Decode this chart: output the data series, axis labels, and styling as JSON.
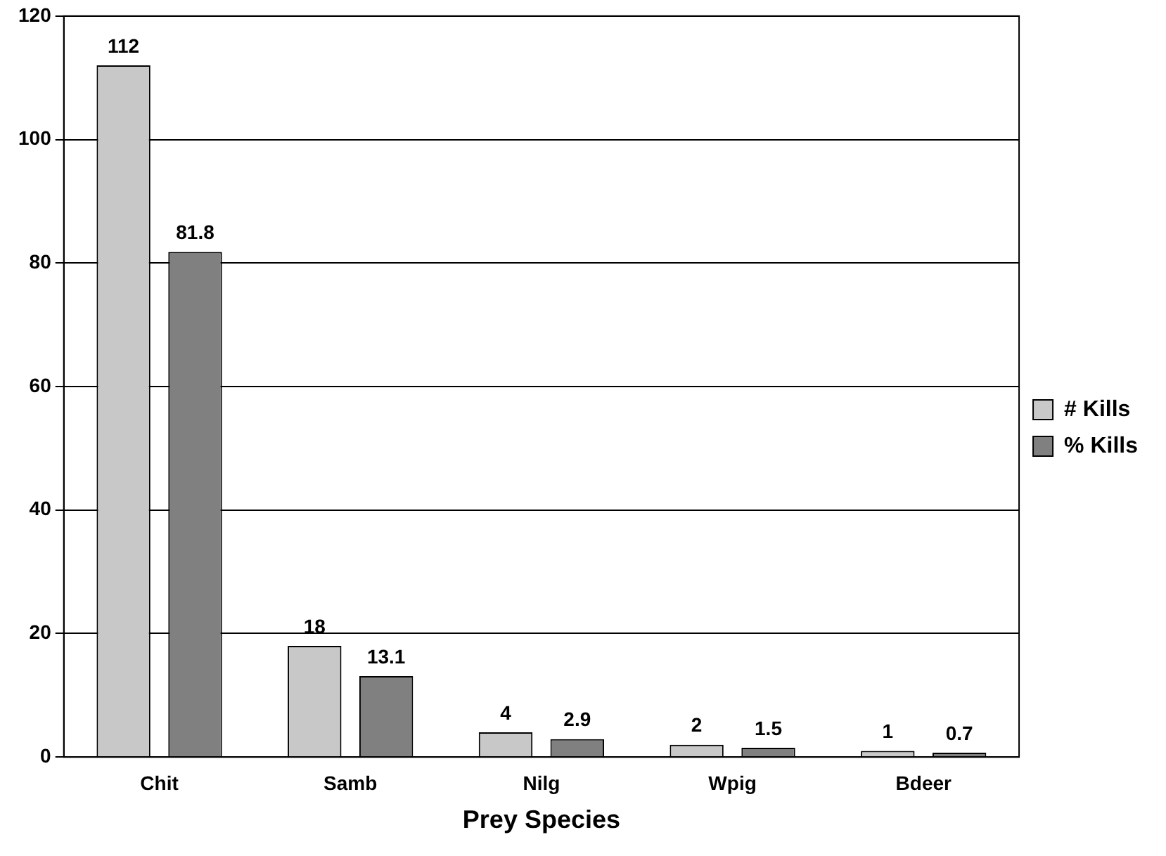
{
  "chart_data": {
    "type": "bar",
    "xlabel": "Prey Species",
    "categories": [
      "Chit",
      "Samb",
      "Nilg",
      "Wpig",
      "Bdeer"
    ],
    "series": [
      {
        "name": "# Kills",
        "color": "#c8c8c8",
        "values": [
          112,
          18,
          4,
          2,
          1
        ]
      },
      {
        "name": "% Kills",
        "color": "#808080",
        "values": [
          81.8,
          13.1,
          2.9,
          1.5,
          0.7
        ]
      }
    ],
    "ylim": [
      0,
      120
    ],
    "yticks": [
      0,
      20,
      40,
      60,
      80,
      100,
      120
    ],
    "grid": "y",
    "legend": "right",
    "data_labels": true
  }
}
